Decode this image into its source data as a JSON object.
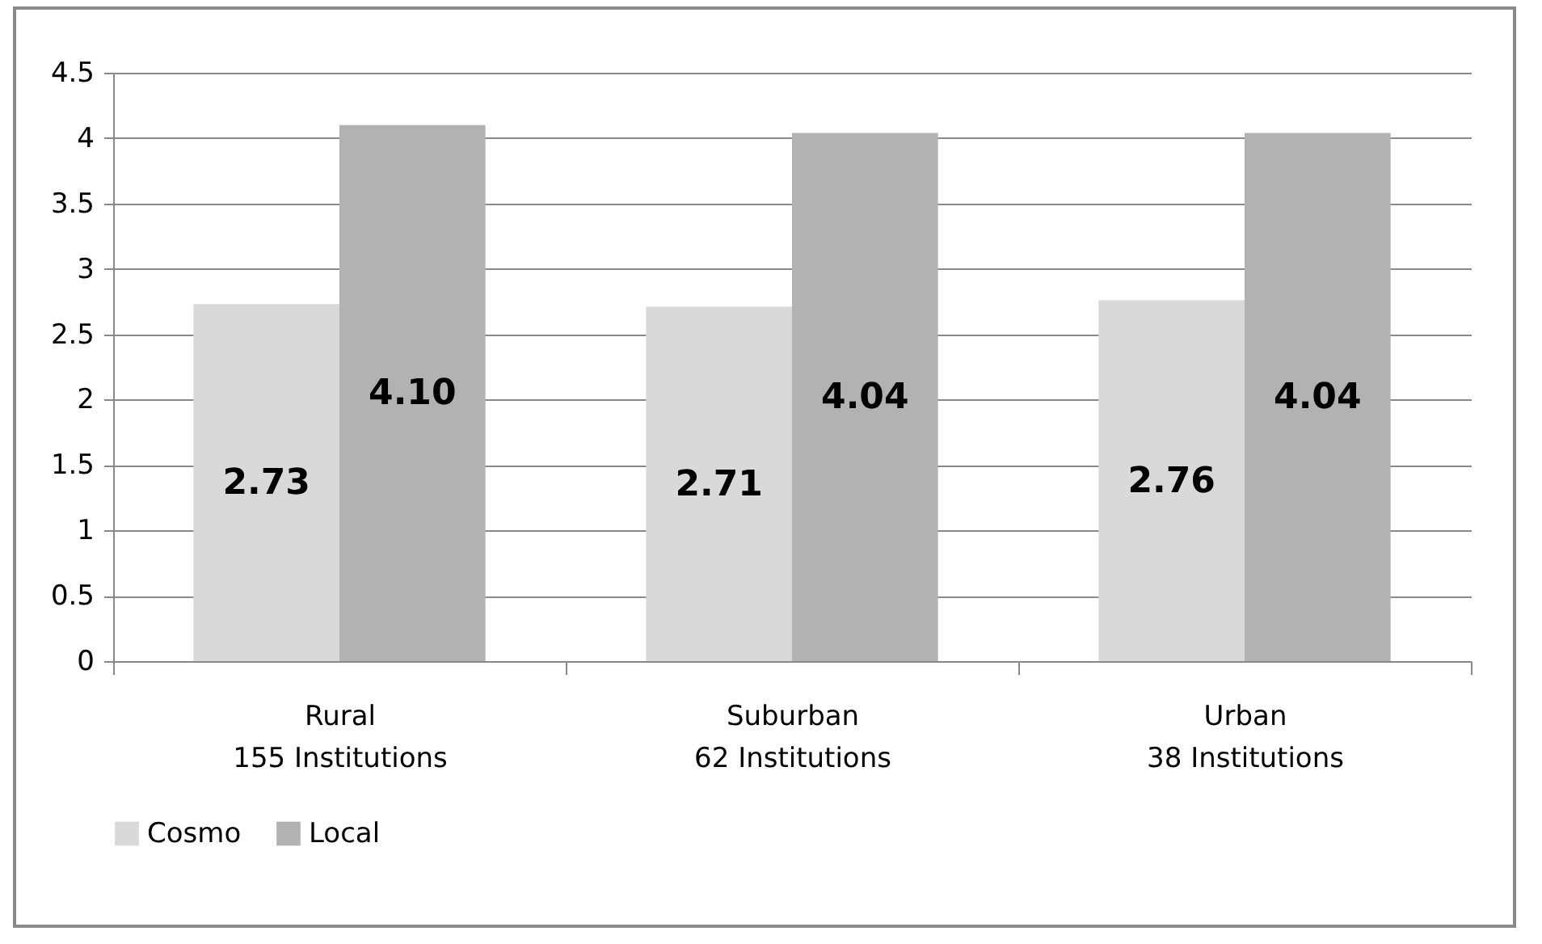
{
  "chart_data": {
    "type": "bar",
    "categories": [
      "Rural\n155 Institutions",
      "Suburban\n62 Institutions",
      "Urban\n38 Institutions"
    ],
    "series": [
      {
        "name": "Cosmo",
        "color": "#d9d9d9",
        "values": [
          2.73,
          2.71,
          2.76
        ],
        "value_labels": [
          "2.73",
          "2.71",
          "2.76"
        ]
      },
      {
        "name": "Local",
        "color": "#b2b2b2",
        "values": [
          4.1,
          4.04,
          4.04
        ],
        "value_labels": [
          "4.10",
          "4.04",
          "4.04"
        ]
      }
    ],
    "ylim": [
      0,
      4.5
    ],
    "yticks": [
      0,
      0.5,
      1,
      1.5,
      2,
      2.5,
      3,
      3.5,
      4,
      4.5
    ],
    "grid": "y",
    "legend": "bottom"
  }
}
